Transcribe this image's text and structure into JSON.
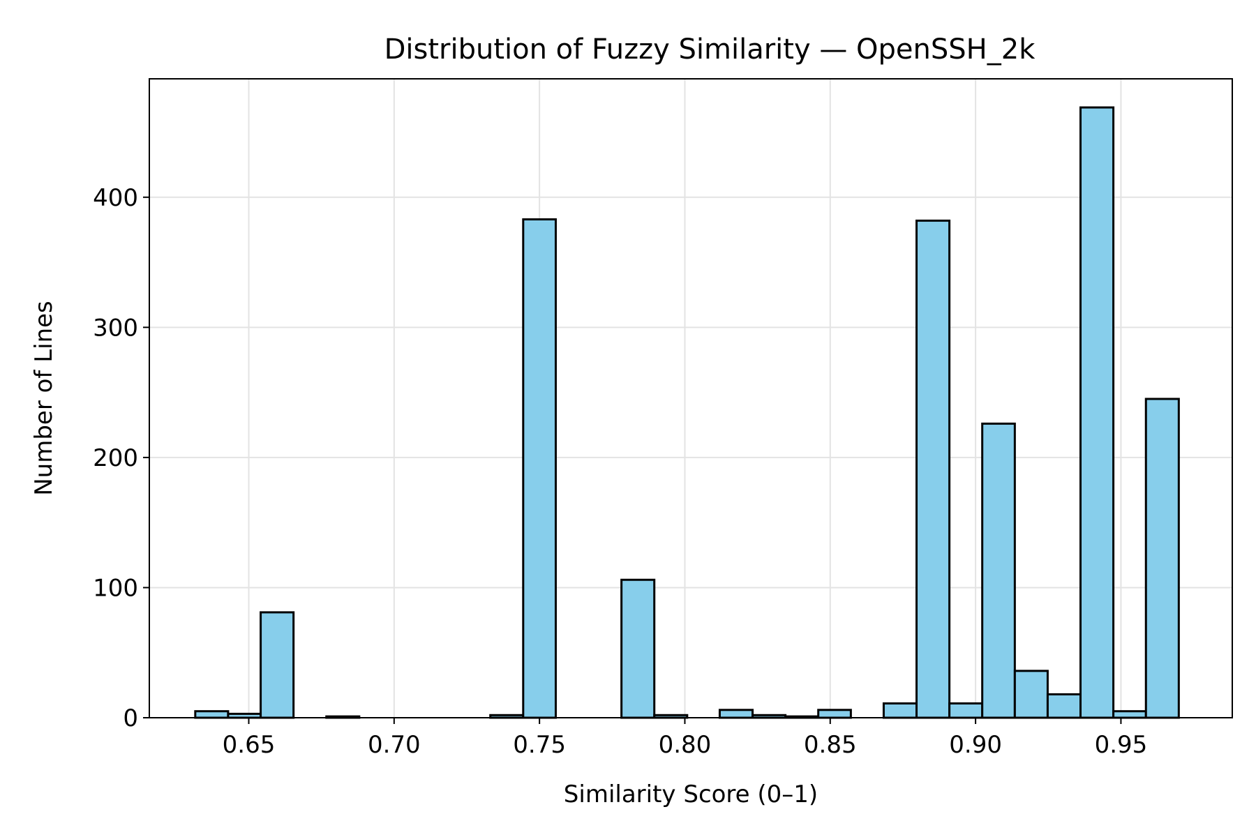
{
  "chart_data": {
    "type": "bar",
    "title": "Distribution of Fuzzy Similarity — OpenSSH_2k",
    "xlabel": "Similarity Score (0–1)",
    "ylabel": "Number of Lines",
    "xlim": [
      0.6158,
      0.9883
    ],
    "ylim": [
      0,
      491
    ],
    "x_ticks": [
      0.65,
      0.7,
      0.75,
      0.8,
      0.85,
      0.9,
      0.95
    ],
    "x_tick_labels": [
      "0.65",
      "0.70",
      "0.75",
      "0.80",
      "0.85",
      "0.90",
      "0.95"
    ],
    "y_ticks": [
      0,
      100,
      200,
      300,
      400
    ],
    "y_tick_labels": [
      "0",
      "100",
      "200",
      "300",
      "400"
    ],
    "grid": true,
    "colors": {
      "bar_fill": "#87CEEB",
      "bar_edge": "#000000",
      "grid": "#e3e3e3"
    },
    "bin_edges": [
      0.6316,
      0.6429,
      0.6541,
      0.6654,
      0.6767,
      0.688,
      0.6992,
      0.7105,
      0.7218,
      0.7331,
      0.7444,
      0.7556,
      0.7669,
      0.7782,
      0.7895,
      0.8008,
      0.812,
      0.8233,
      0.8346,
      0.8459,
      0.8571,
      0.8684,
      0.8797,
      0.891,
      0.9023,
      0.9135,
      0.9248,
      0.9361,
      0.9474,
      0.9586,
      0.9699
    ],
    "values": [
      5,
      3,
      81,
      0,
      1,
      0,
      0,
      0,
      0,
      2,
      383,
      0,
      0,
      106,
      2,
      0,
      6,
      2,
      1,
      6,
      0,
      11,
      382,
      11,
      226,
      36,
      18,
      469,
      5,
      245
    ]
  }
}
